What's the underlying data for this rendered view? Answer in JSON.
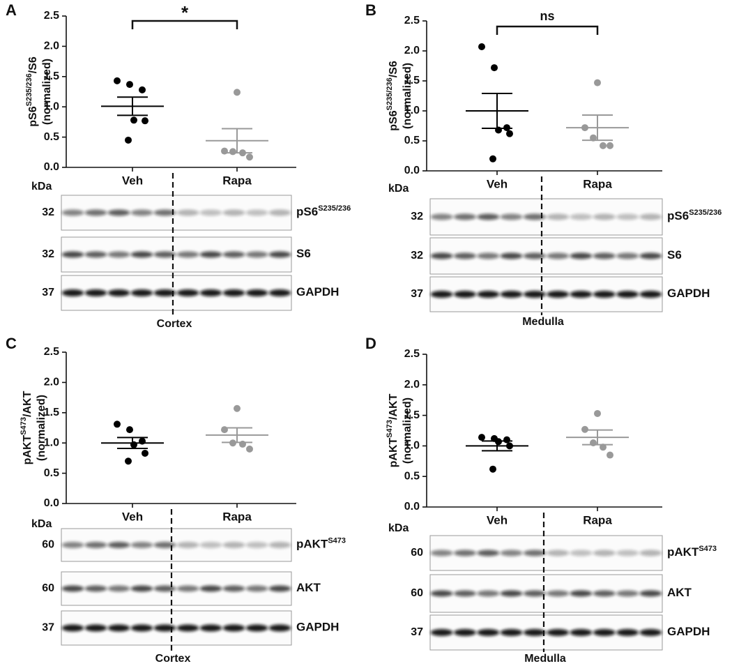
{
  "chart_data": [
    {
      "type": "scatter",
      "panel": "A",
      "ylabel": {
        "parts": [
          "pS6",
          "S235/236",
          "/S6"
        ],
        "line2": "(normalized)"
      },
      "categories": [
        "Veh",
        "Rapa"
      ],
      "series": [
        {
          "color": "#000000",
          "values": [
            1.43,
            1.37,
            1.28,
            0.78,
            0.77,
            0.45
          ],
          "mean": 1.01,
          "sem": 0.15
        },
        {
          "color": "#999999",
          "values": [
            1.24,
            0.27,
            0.26,
            0.24,
            0.17
          ],
          "mean": 0.44,
          "sem": 0.2
        }
      ],
      "ylim": [
        0,
        2.5
      ],
      "yticks": [
        {
          "value": 0,
          "label": "0.0"
        },
        0.5,
        {
          "value": 1,
          "label": "1.0"
        },
        1.5,
        {
          "value": 2,
          "label": "2.0"
        },
        2.5
      ],
      "annotation": "*"
    },
    {
      "type": "scatter",
      "panel": "B",
      "ylabel": {
        "parts": [
          "pS6",
          "S235/236",
          "/S6"
        ],
        "line2": "(normalized)"
      },
      "categories": [
        "Veh",
        "Rapa"
      ],
      "series": [
        {
          "color": "#000000",
          "values": [
            2.07,
            1.72,
            0.72,
            0.68,
            0.62,
            0.2
          ],
          "mean": 1.0,
          "sem": 0.29
        },
        {
          "color": "#999999",
          "values": [
            1.47,
            0.72,
            0.55,
            0.42,
            0.42
          ],
          "mean": 0.72,
          "sem": 0.21
        }
      ],
      "ylim": [
        0,
        2.5
      ],
      "yticks": [
        {
          "value": 0,
          "label": "0.0"
        },
        0.5,
        {
          "value": 1,
          "label": "1.0"
        },
        1.5,
        {
          "value": 2,
          "label": "2.0"
        },
        2.5
      ],
      "annotation": "ns"
    },
    {
      "type": "scatter",
      "panel": "C",
      "ylabel": {
        "parts": [
          "pAKT",
          "S473",
          "/AKT"
        ],
        "line2": "(normalized)"
      },
      "categories": [
        "Veh",
        "Rapa"
      ],
      "series": [
        {
          "color": "#000000",
          "values": [
            1.31,
            1.22,
            1.03,
            0.97,
            0.83,
            0.7
          ],
          "mean": 1.0,
          "sem": 0.09
        },
        {
          "color": "#999999",
          "values": [
            1.57,
            1.22,
            1.0,
            0.98,
            0.9
          ],
          "mean": 1.13,
          "sem": 0.12
        }
      ],
      "ylim": [
        0,
        2.5
      ],
      "yticks": [
        {
          "value": 0,
          "label": "0.0"
        },
        0.5,
        {
          "value": 1,
          "label": "1.0"
        },
        1.5,
        {
          "value": 2,
          "label": "2.0"
        },
        2.5
      ]
    },
    {
      "type": "scatter",
      "panel": "D",
      "ylabel": {
        "parts": [
          "pAKT",
          "S473",
          "/AKT"
        ],
        "line2": "(normalized)"
      },
      "categories": [
        "Veh",
        "Rapa"
      ],
      "series": [
        {
          "color": "#000000",
          "values": [
            1.14,
            1.12,
            1.1,
            1.07,
            1.0,
            0.62
          ],
          "mean": 1.0,
          "sem": 0.08
        },
        {
          "color": "#999999",
          "values": [
            1.53,
            1.27,
            1.05,
            0.98,
            0.85
          ],
          "mean": 1.14,
          "sem": 0.12
        }
      ],
      "ylim": [
        0,
        2.5
      ],
      "yticks": [
        {
          "value": 0,
          "label": "0.0"
        },
        0.5,
        {
          "value": 1,
          "label": "1.0"
        },
        1.5,
        {
          "value": 2,
          "label": "2.0"
        },
        2.5
      ]
    }
  ],
  "blots": [
    {
      "kda": "kDa",
      "tissue": "Cortex",
      "rows": [
        {
          "mw": "32",
          "label": "pS6",
          "sup": "S235/236"
        },
        {
          "mw": "32",
          "label": "S6"
        },
        {
          "mw": "37",
          "label": "GAPDH"
        }
      ]
    },
    {
      "kda": "kDa",
      "tissue": "Medulla",
      "rows": [
        {
          "mw": "32",
          "label": "pS6",
          "sup": "S235/236"
        },
        {
          "mw": "32",
          "label": "S6"
        },
        {
          "mw": "37",
          "label": "GAPDH"
        }
      ]
    },
    {
      "kda": "kDa",
      "tissue": "Cortex",
      "rows": [
        {
          "mw": "60",
          "label": "pAKT",
          "sup": "S473"
        },
        {
          "mw": "60",
          "label": "AKT"
        },
        {
          "mw": "37",
          "label": "GAPDH"
        }
      ]
    },
    {
      "kda": "kDa",
      "tissue": "Medulla",
      "rows": [
        {
          "mw": "60",
          "label": "pAKT",
          "sup": "S473"
        },
        {
          "mw": "60",
          "label": "AKT"
        },
        {
          "mw": "37",
          "label": "GAPDH"
        }
      ]
    }
  ]
}
